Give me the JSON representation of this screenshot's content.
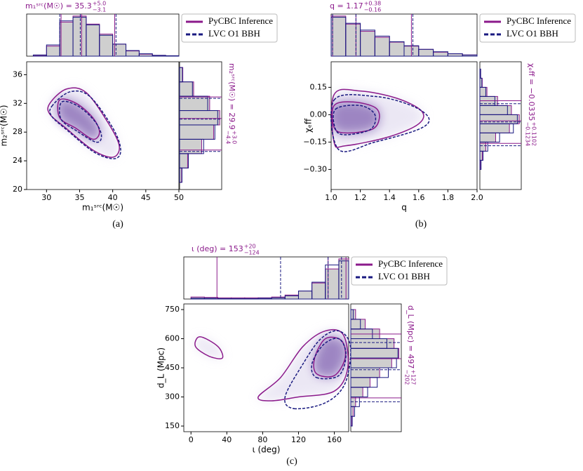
{
  "chart_data": [
    {
      "type": "corner",
      "caption": "(a)",
      "series": [
        {
          "name": "PyCBC Inference",
          "color": "#8b1a8b",
          "dash": false
        },
        {
          "name": "LVC O1 BBH",
          "color": "#1a1a80",
          "dash": true
        }
      ],
      "xlabel": "m₁ˢʳᶜ(M☉)",
      "ylabel": "m₂ˢʳᶜ(M☉)",
      "xlim": [
        27,
        50
      ],
      "xticks": [
        30,
        35,
        40,
        45,
        50
      ],
      "ylim": [
        20,
        37.8
      ],
      "yticks": [
        20,
        24,
        28,
        32,
        36
      ],
      "top": {
        "title": "m₁ˢʳᶜ(M☉) = 35.3",
        "plus": "+5.0",
        "minus": "−3.1",
        "bins": [
          28,
          30,
          32,
          34,
          36,
          38,
          40,
          42,
          44,
          46,
          48,
          50
        ],
        "counts": [
          [
            0.02,
            0.25,
            0.85,
            1.0,
            0.8,
            0.55,
            0.3,
            0.13,
            0.05,
            0.02,
            0.01
          ],
          [
            0.03,
            0.28,
            0.88,
            0.97,
            0.78,
            0.52,
            0.3,
            0.14,
            0.06,
            0.02,
            0.01
          ]
        ],
        "lines": [
          [
            32.2,
            35.3,
            40.3
          ],
          [
            32.0,
            35.1,
            40.5
          ]
        ]
      },
      "right": {
        "title": "m₂ˢʳᶜ(M☉) = 29.9",
        "plus": "+3.0",
        "minus": "−4.4",
        "bins": [
          21,
          23,
          25,
          27,
          29,
          31,
          33,
          35,
          37
        ],
        "counts": [
          [
            0.05,
            0.2,
            0.55,
            0.85,
            1.0,
            0.75,
            0.35,
            0.08
          ],
          [
            0.06,
            0.22,
            0.6,
            0.88,
            0.95,
            0.7,
            0.32,
            0.07
          ]
        ],
        "lines": [
          [
            25.5,
            29.9,
            32.9
          ],
          [
            25.3,
            29.8,
            32.7
          ]
        ]
      },
      "contours": [
        {
          "series": 0,
          "x": [
            32,
            34.5,
            37,
            38,
            37,
            34.5,
            32
          ],
          "y": [
            32.5,
            32,
            30,
            28,
            27,
            28.5,
            30
          ]
        },
        {
          "series": 0,
          "x": [
            30.5,
            33,
            36,
            39.5,
            41,
            40,
            37,
            33,
            30.5
          ],
          "y": [
            32,
            34,
            33.5,
            29,
            26,
            24.5,
            25.5,
            28.5,
            30.5
          ]
        },
        {
          "series": 1,
          "x": [
            32.3,
            34.8,
            37.3,
            38.3,
            37.5,
            34.5,
            32.2
          ],
          "y": [
            32.2,
            31.6,
            29.5,
            27.5,
            26.6,
            28.2,
            29.8
          ]
        },
        {
          "series": 1,
          "x": [
            30.8,
            33.5,
            36.5,
            40,
            41.2,
            40.3,
            37.2,
            33.2,
            30.8
          ],
          "y": [
            31.6,
            33.6,
            33,
            28.6,
            25.6,
            24.3,
            25.2,
            28.2,
            30.2
          ]
        }
      ]
    },
    {
      "type": "corner",
      "caption": "(b)",
      "series": [
        {
          "name": "PyCBC Inference",
          "color": "#8b1a8b",
          "dash": false
        },
        {
          "name": "LVC O1 BBH",
          "color": "#1a1a80",
          "dash": true
        }
      ],
      "xlabel": "q",
      "ylabel": "χₑff",
      "xlim": [
        1,
        2
      ],
      "xticks": [
        {
          "value": 1,
          "label": "1.0"
        },
        {
          "value": 1.2,
          "label": "1.2"
        },
        {
          "value": 1.4,
          "label": "1.4"
        },
        {
          "value": 1.6,
          "label": "1.6"
        },
        {
          "value": 1.8,
          "label": "1.8"
        },
        {
          "value": 2,
          "label": "2.0"
        }
      ],
      "ylim": [
        -0.41,
        0.29
      ],
      "yticks": [
        {
          "value": -0.3,
          "label": "−0.30"
        },
        {
          "value": -0.15,
          "label": "−0.15"
        },
        {
          "value": 0,
          "label": "0.00"
        },
        {
          "value": 0.15,
          "label": "0.15"
        }
      ],
      "top": {
        "title": "q = 1.17",
        "plus": "+0.38",
        "minus": "−0.16",
        "bins": [
          1.0,
          1.1,
          1.2,
          1.3,
          1.4,
          1.5,
          1.6,
          1.7,
          1.8,
          1.9,
          2.0
        ],
        "counts": [
          [
            1.0,
            0.8,
            0.62,
            0.47,
            0.35,
            0.25,
            0.17,
            0.1,
            0.06,
            0.03
          ],
          [
            0.97,
            0.82,
            0.65,
            0.5,
            0.36,
            0.26,
            0.17,
            0.11,
            0.06,
            0.03
          ]
        ],
        "lines": [
          [
            1.01,
            1.17,
            1.55
          ],
          [
            1.01,
            1.17,
            1.56
          ]
        ]
      },
      "right": {
        "title": "χₑff = −0.0335",
        "plus": "+0.1102",
        "minus": "−0.1234",
        "bins": [
          -0.3,
          -0.25,
          -0.2,
          -0.15,
          -0.1,
          -0.05,
          0,
          0.05,
          0.1,
          0.15,
          0.2,
          0.25
        ],
        "counts": [
          [
            0.02,
            0.06,
            0.15,
            0.4,
            0.75,
            1.0,
            0.8,
            0.45,
            0.18,
            0.06,
            0.02
          ],
          [
            0.03,
            0.08,
            0.2,
            0.5,
            0.85,
            0.95,
            0.7,
            0.38,
            0.15,
            0.05,
            0.02
          ]
        ],
        "lines": [
          [
            -0.1569,
            -0.0335,
            0.0767
          ],
          [
            -0.17,
            -0.04,
            0.06
          ]
        ]
      },
      "contours": [
        {
          "series": 0,
          "x": [
            1.02,
            1.15,
            1.3,
            1.33,
            1.28,
            1.1,
            1.02
          ],
          "y": [
            0.05,
            0.07,
            0.04,
            -0.02,
            -0.08,
            -0.1,
            -0.07
          ]
        },
        {
          "series": 0,
          "x": [
            1.02,
            1.2,
            1.45,
            1.62,
            1.6,
            1.4,
            1.1,
            1.02
          ],
          "y": [
            0.11,
            0.13,
            0.09,
            0.02,
            -0.05,
            -0.12,
            -0.17,
            -0.15
          ]
        },
        {
          "series": 1,
          "x": [
            1.03,
            1.2,
            1.3,
            1.27,
            1.1,
            1.03
          ],
          "y": [
            0.03,
            0.05,
            0.0,
            -0.08,
            -0.11,
            -0.08
          ]
        },
        {
          "series": 1,
          "x": [
            1.02,
            1.3,
            1.55,
            1.67,
            1.6,
            1.3,
            1.05
          ],
          "y": [
            0.08,
            0.1,
            0.05,
            -0.02,
            -0.08,
            -0.15,
            -0.19
          ]
        }
      ]
    },
    {
      "type": "corner",
      "caption": "(c)",
      "series": [
        {
          "name": "PyCBC Inference",
          "color": "#8b1a8b",
          "dash": false
        },
        {
          "name": "LVC O1 BBH",
          "color": "#1a1a80",
          "dash": true
        }
      ],
      "xlabel": "ι (deg)",
      "ylabel": "d_L (Mpc)",
      "xlim": [
        -8,
        176
      ],
      "xticks": [
        0,
        40,
        80,
        120,
        160
      ],
      "ylim": [
        121,
        779
      ],
      "yticks": [
        150,
        300,
        450,
        600,
        750
      ],
      "top": {
        "title": "ι (deg) = 153",
        "plus": "+20",
        "minus": "−124",
        "bins": [
          0,
          15,
          30,
          45,
          60,
          75,
          90,
          105,
          120,
          135,
          150,
          165,
          176
        ],
        "counts": [
          [
            0.05,
            0.04,
            0.03,
            0.03,
            0.03,
            0.03,
            0.05,
            0.1,
            0.2,
            0.4,
            0.75,
            1.0
          ],
          [
            0.02,
            0.02,
            0.01,
            0.01,
            0.01,
            0.02,
            0.03,
            0.08,
            0.2,
            0.42,
            0.85,
            0.95
          ]
        ],
        "lines": [
          [
            29,
            153,
            173
          ],
          [
            100,
            153,
            168
          ]
        ]
      },
      "right": {
        "title": "d_L (Mpc) = 497",
        "plus": "+127",
        "minus": "−202",
        "bins": [
          150,
          200,
          250,
          300,
          350,
          400,
          450,
          500,
          550,
          600,
          650,
          700,
          750
        ],
        "counts": [
          [
            0.02,
            0.05,
            0.1,
            0.25,
            0.4,
            0.6,
            0.85,
            1.0,
            0.9,
            0.6,
            0.3,
            0.1
          ],
          [
            0.03,
            0.08,
            0.18,
            0.35,
            0.55,
            0.78,
            0.95,
            0.98,
            0.75,
            0.45,
            0.2,
            0.05
          ]
        ],
        "lines": [
          [
            295,
            497,
            624
          ],
          [
            275,
            440,
            580
          ]
        ]
      },
      "contours": [
        {
          "series": 0,
          "x": [
            140,
            160,
            172,
            168,
            150,
            138
          ],
          "y": [
            420,
            410,
            500,
            590,
            600,
            500
          ]
        },
        {
          "series": 0,
          "x": [
            90,
            120,
            160,
            175,
            170,
            150,
            125,
            100,
            75
          ],
          "y": [
            280,
            300,
            330,
            450,
            620,
            640,
            560,
            400,
            300
          ]
        },
        {
          "series": 0,
          "x": [
            10,
            30,
            35,
            20,
            5
          ],
          "y": [
            610,
            560,
            500,
            510,
            560
          ]
        },
        {
          "series": 1,
          "x": [
            140,
            165,
            173,
            165,
            148,
            135
          ],
          "y": [
            400,
            410,
            520,
            600,
            570,
            470
          ]
        },
        {
          "series": 1,
          "x": [
            115,
            150,
            172,
            178,
            165,
            145,
            125,
            105
          ],
          "y": [
            240,
            270,
            370,
            560,
            640,
            600,
            470,
            300
          ]
        }
      ]
    }
  ]
}
